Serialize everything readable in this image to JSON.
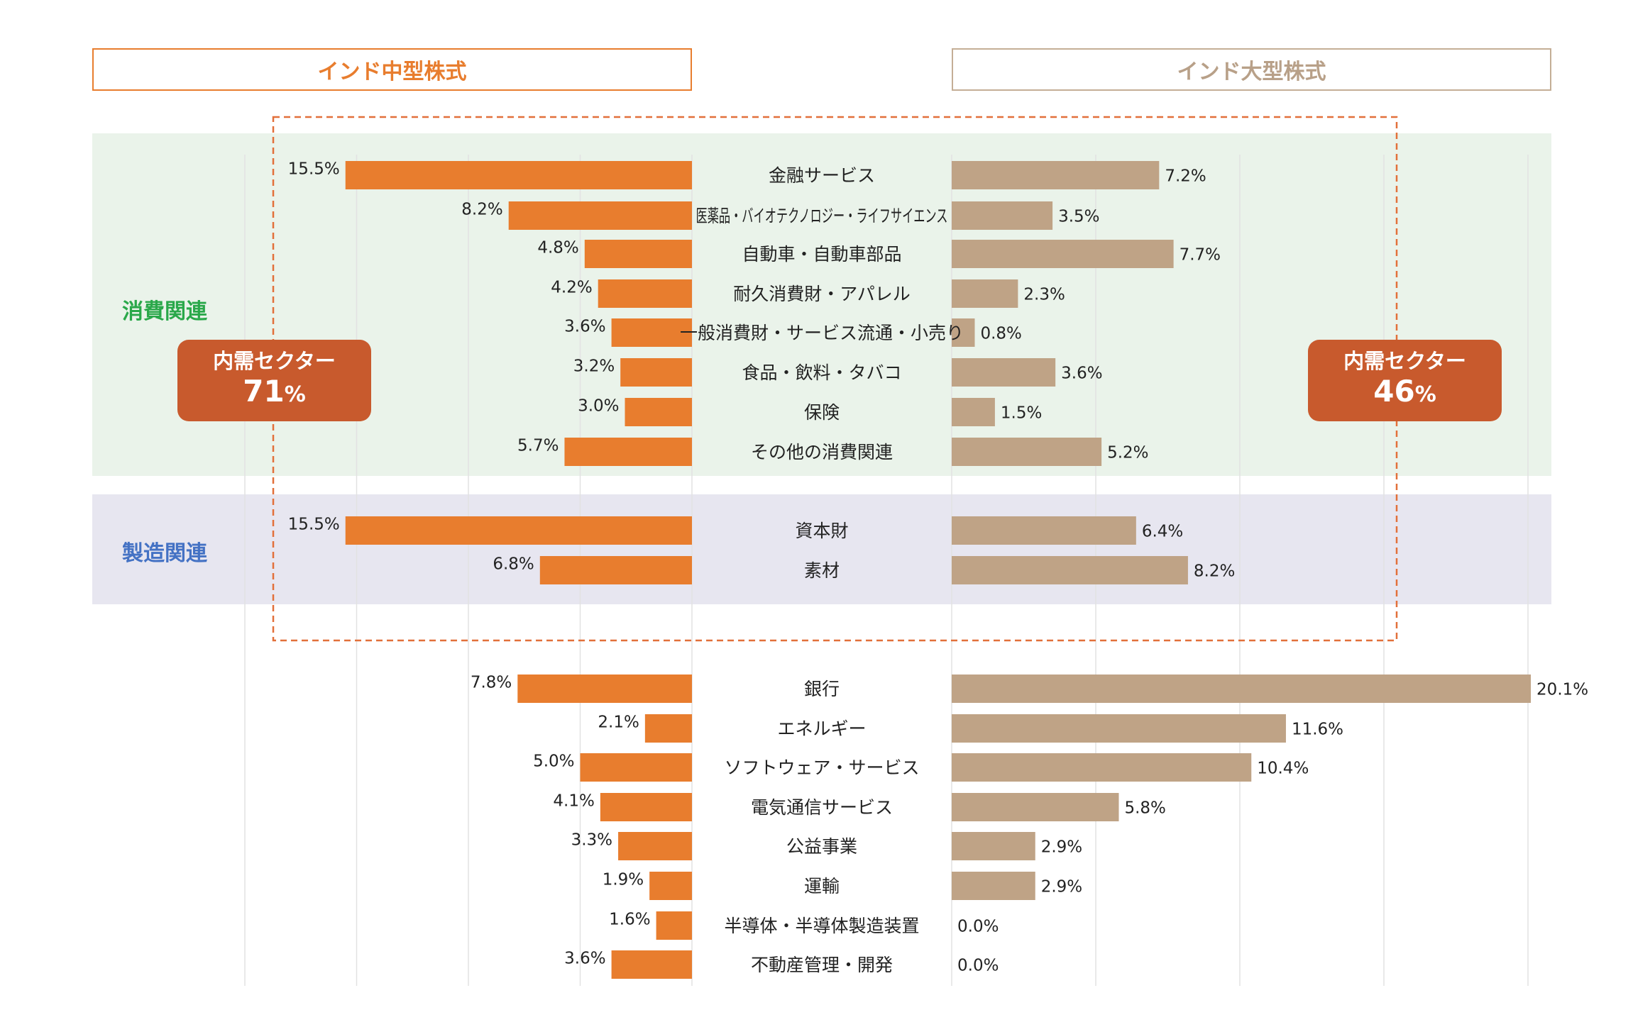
{
  "headers": {
    "left": "インド中型株式",
    "right": "インド大型株式"
  },
  "badges": {
    "left": {
      "label": "内需セクター",
      "value": "71",
      "unit": "%"
    },
    "right": {
      "label": "内需セクター",
      "value": "46",
      "unit": "%"
    }
  },
  "groups": {
    "consumer": "消費関連",
    "manufacturing": "製造関連"
  },
  "colors": {
    "mid_cap_bar": "#E87D2E",
    "large_cap_bar": "#BFA386",
    "consumer_band": "#EAF3EA",
    "manufacturing_band": "#E7E6F0",
    "badge": "#C85A2D",
    "dashed_box": "#E2703A"
  },
  "chart_data": {
    "type": "bar",
    "orientation": "horizontal-butterfly",
    "categories": [
      "金融サービス",
      "医薬品・バイオテクノロジー・ライフサイエンス",
      "自動車・自動車部品",
      "耐久消費財・アパレル",
      "一般消費財・サービス流通・小売り",
      "食品・飲料・タバコ",
      "保険",
      "その他の消費関連",
      "資本財",
      "素材",
      "銀行",
      "エネルギー",
      "ソフトウェア・サービス",
      "電気通信サービス",
      "公益事業",
      "運輸",
      "半導体・半導体製造装置",
      "不動産管理・開発"
    ],
    "series": [
      {
        "name": "インド中型株式",
        "values": [
          15.5,
          8.2,
          4.8,
          4.2,
          3.6,
          3.2,
          3.0,
          5.7,
          15.5,
          6.8,
          7.8,
          2.1,
          5.0,
          4.1,
          3.3,
          1.9,
          1.6,
          3.6
        ],
        "labels": [
          "15.5%",
          "8.2%",
          "4.8%",
          "4.2%",
          "3.6%",
          "3.2%",
          "3.0%",
          "5.7%",
          "15.5%",
          "6.8%",
          "7.8%",
          "2.1%",
          "5.0%",
          "4.1%",
          "3.3%",
          "1.9%",
          "1.6%",
          "3.6%"
        ]
      },
      {
        "name": "インド大型株式",
        "values": [
          7.2,
          3.5,
          7.7,
          2.3,
          0.8,
          3.6,
          1.5,
          5.2,
          6.4,
          8.2,
          20.1,
          11.6,
          10.4,
          5.8,
          2.9,
          2.9,
          0.0,
          0.0
        ],
        "labels": [
          "7.2%",
          "3.5%",
          "7.7%",
          "2.3%",
          "0.8%",
          "3.6%",
          "1.5%",
          "5.2%",
          "6.4%",
          "8.2%",
          "20.1%",
          "11.6%",
          "10.4%",
          "5.8%",
          "2.9%",
          "2.9%",
          "0.0%",
          "0.0%"
        ]
      }
    ],
    "group_membership": {
      "消費関連": [
        0,
        1,
        2,
        3,
        4,
        5,
        6,
        7
      ],
      "製造関連": [
        8,
        9
      ]
    },
    "xlim_left": [
      0,
      20
    ],
    "xlim_right": [
      0,
      20
    ],
    "grid": true,
    "legend": "none"
  }
}
